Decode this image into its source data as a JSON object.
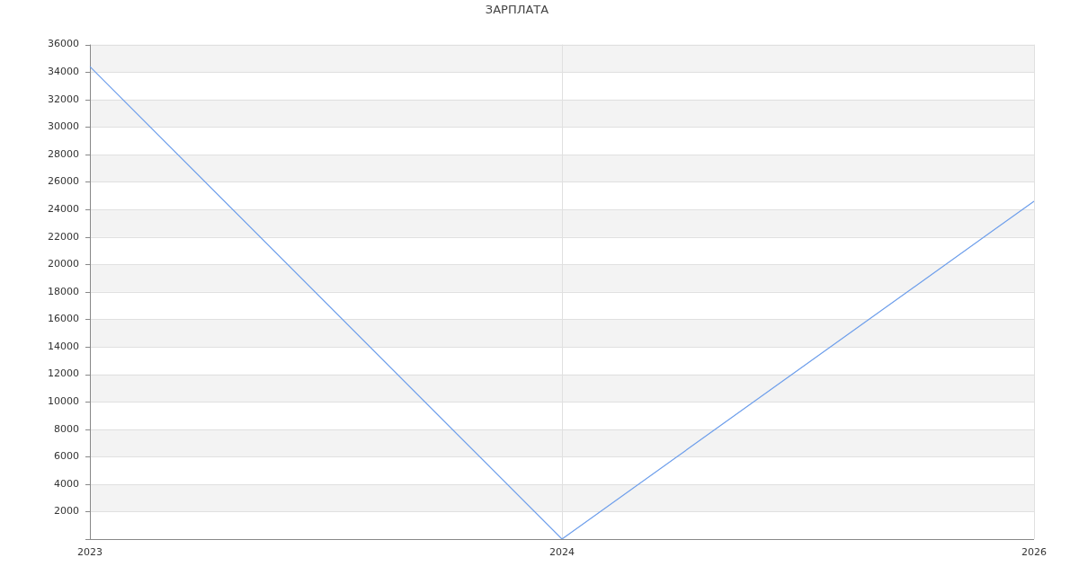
{
  "chart_data": {
    "type": "line",
    "title": "ЗАРПЛАТА",
    "categories": [
      "2023",
      "2024",
      "2026"
    ],
    "series": [
      {
        "color": "#6d9eeb",
        "values": [
          34400,
          0,
          24600
        ]
      }
    ],
    "ylim": [
      0,
      36000
    ],
    "yticks": [
      {
        "value": 0,
        "label": null
      },
      2000,
      4000,
      6000,
      8000,
      10000,
      12000,
      14000,
      16000,
      18000,
      20000,
      22000,
      24000,
      26000,
      28000,
      30000,
      32000,
      34000,
      36000
    ],
    "grid": true,
    "legend": false,
    "marker": "none",
    "line_style": "solid"
  }
}
